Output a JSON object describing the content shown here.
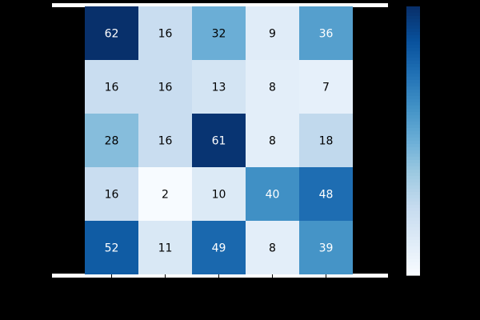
{
  "chart_data": {
    "type": "heatmap",
    "title": "",
    "xlabel": "",
    "ylabel": "",
    "rows": 5,
    "cols": 5,
    "values": [
      [
        62,
        16,
        32,
        9,
        36
      ],
      [
        16,
        16,
        13,
        8,
        7
      ],
      [
        28,
        16,
        61,
        8,
        18
      ],
      [
        16,
        2,
        10,
        40,
        48
      ],
      [
        52,
        11,
        49,
        8,
        39
      ]
    ],
    "value_range": [
      2,
      62
    ],
    "colormap": "Blues",
    "colorbar": true,
    "colors": {
      "colormap_low": "#f7fbff",
      "colormap_high": "#08306b",
      "text_dark": "#000000",
      "text_light": "#ffffff",
      "background": "#000000",
      "axes_band": "#ffffff"
    }
  }
}
